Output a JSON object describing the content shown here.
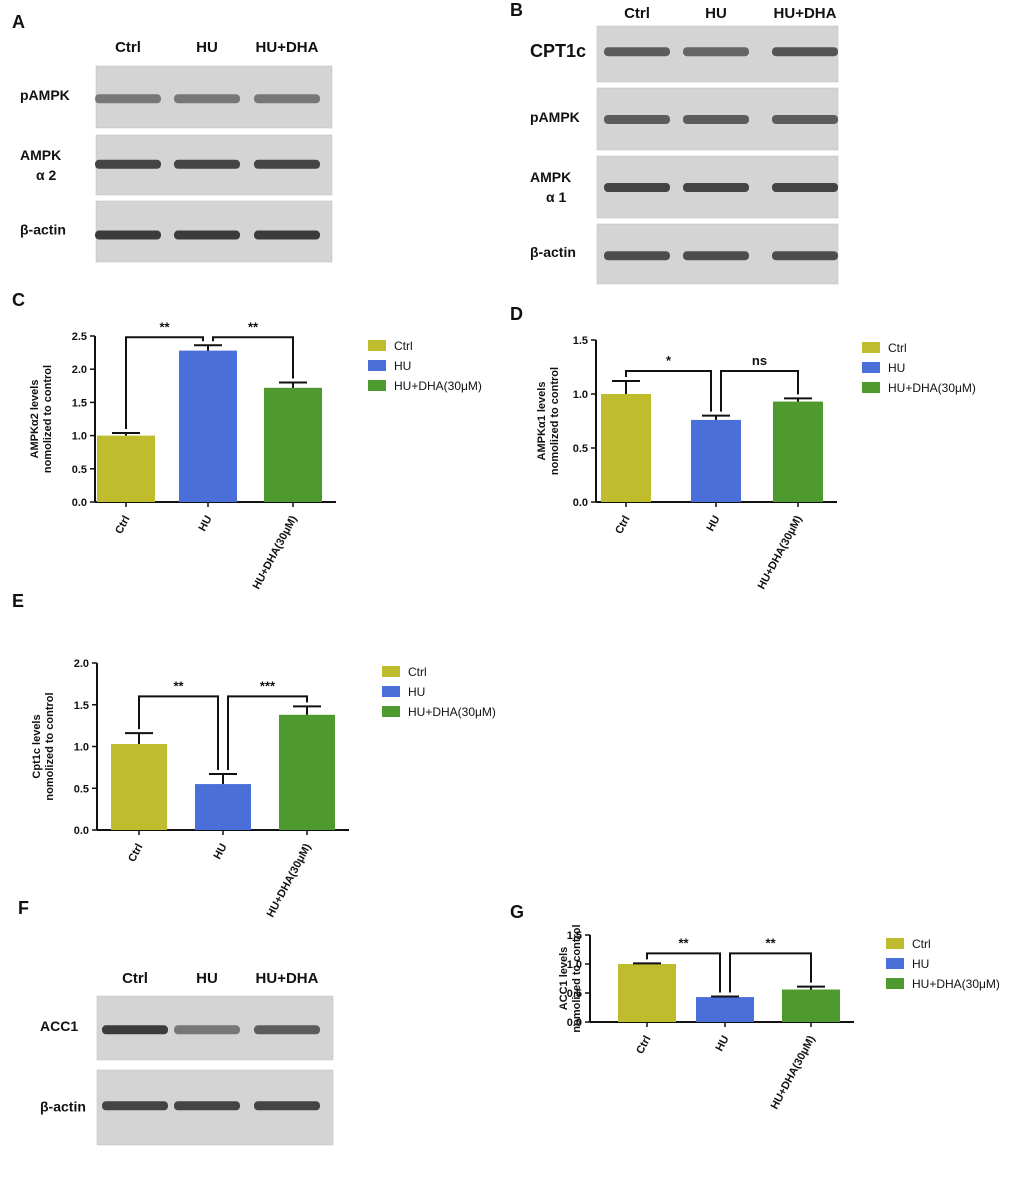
{
  "colors": {
    "ctrl": "#bfbd2e",
    "hu": "#4a6fd8",
    "dha": "#4f9a2f",
    "blot_bg": "#d4d4d4",
    "band": "#2a2a2a"
  },
  "panels": {
    "A": {
      "label": "A",
      "lanes": [
        "Ctrl",
        "HU",
        "HU+DHA"
      ],
      "blots": [
        {
          "name": "pAMPK",
          "sub": ""
        },
        {
          "name": "AMPK",
          "sub": "α 2"
        },
        {
          "name": "β-actin",
          "sub": ""
        }
      ]
    },
    "B": {
      "label": "B",
      "lanes": [
        "Ctrl",
        "HU",
        "HU+DHA"
      ],
      "blots": [
        {
          "name": "CPT1c",
          "sub": ""
        },
        {
          "name": "pAMPK",
          "sub": ""
        },
        {
          "name": "AMPK",
          "sub": "α 1"
        },
        {
          "name": "β-actin",
          "sub": ""
        }
      ]
    },
    "F": {
      "label": "F",
      "lanes": [
        "Ctrl",
        "HU",
        "HU+DHA"
      ],
      "blots": [
        {
          "name": "ACC1",
          "sub": ""
        },
        {
          "name": "β-actin",
          "sub": ""
        }
      ]
    }
  },
  "chart_data": [
    {
      "panel": "C",
      "type": "bar",
      "categories": [
        "Ctrl",
        "HU",
        "HU+DHA(30μM)"
      ],
      "values": [
        1.0,
        2.28,
        1.72
      ],
      "errors": [
        0.04,
        0.08,
        0.08
      ],
      "ylabel": "AMPKα2 levels nomolized to control",
      "ylim": [
        0,
        2.5
      ],
      "yticks": [
        "0.0",
        "0.5",
        "1.0",
        "1.5",
        "2.0",
        "2.5"
      ],
      "legend": [
        "Ctrl",
        "HU",
        "HU+DHA(30μM)"
      ],
      "significance": [
        {
          "from": 0,
          "to": 1,
          "label": "**"
        },
        {
          "from": 1,
          "to": 2,
          "label": "**"
        }
      ]
    },
    {
      "panel": "D",
      "type": "bar",
      "categories": [
        "Ctrl",
        "HU",
        "HU+DHA(30μM)"
      ],
      "values": [
        1.0,
        0.76,
        0.93
      ],
      "errors": [
        0.12,
        0.04,
        0.03
      ],
      "ylabel": "AMPKα1 levels nomolized to control",
      "ylim": [
        0,
        1.5
      ],
      "yticks": [
        "0.0",
        "0.5",
        "1.0",
        "1.5"
      ],
      "legend": [
        "Ctrl",
        "HU",
        "HU+DHA(30μM)"
      ],
      "significance": [
        {
          "from": 0,
          "to": 1,
          "label": "*"
        },
        {
          "from": 1,
          "to": 2,
          "label": "ns"
        }
      ]
    },
    {
      "panel": "E",
      "type": "bar",
      "categories": [
        "Ctrl",
        "HU",
        "HU+DHA(30μM)"
      ],
      "values": [
        1.03,
        0.55,
        1.38
      ],
      "errors": [
        0.13,
        0.12,
        0.1
      ],
      "ylabel": "Cpt1c levels nomolized to control",
      "ylim": [
        0,
        2.0
      ],
      "yticks": [
        "0.0",
        "0.5",
        "1.0",
        "1.5",
        "2.0"
      ],
      "legend": [
        "Ctrl",
        "HU",
        "HU+DHA(30μM)"
      ],
      "significance": [
        {
          "from": 0,
          "to": 1,
          "label": "**"
        },
        {
          "from": 1,
          "to": 2,
          "label": "***"
        }
      ]
    },
    {
      "panel": "G",
      "type": "bar",
      "categories": [
        "Ctrl",
        "HU",
        "HU+DHA(30μM)"
      ],
      "values": [
        1.0,
        0.43,
        0.56
      ],
      "errors": [
        0.01,
        0.01,
        0.05
      ],
      "ylabel": "ACC1 levels nomolized to control",
      "ylim": [
        0,
        1.5
      ],
      "yticks": [
        "0.0",
        "0.5",
        "1.0",
        "1.5"
      ],
      "legend": [
        "Ctrl",
        "HU",
        "HU+DHA(30μM)"
      ],
      "significance": [
        {
          "from": 0,
          "to": 1,
          "label": "**"
        },
        {
          "from": 1,
          "to": 2,
          "label": "**"
        }
      ]
    }
  ]
}
